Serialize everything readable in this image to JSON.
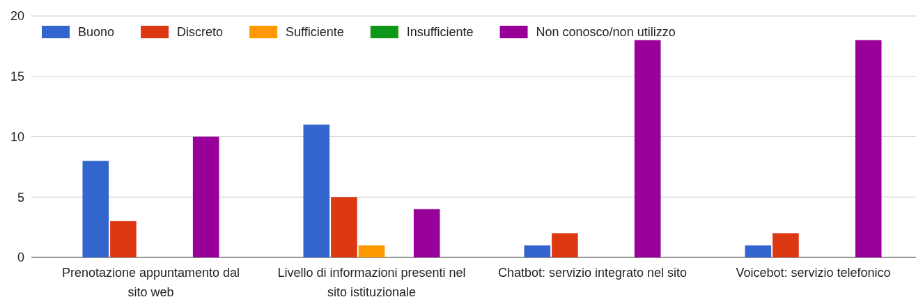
{
  "chart_data": {
    "type": "bar",
    "categories": [
      "Prenotazione appuntamento dal sito web",
      "Livello di informazioni presenti nel sito istituzionale",
      "Chatbot: servizio integrato nel sito",
      "Voicebot: servizio telefonico"
    ],
    "series": [
      {
        "name": "Buono",
        "color": "#3366cc",
        "values": [
          8,
          11,
          1,
          1
        ]
      },
      {
        "name": "Discreto",
        "color": "#dc3912",
        "values": [
          3,
          5,
          2,
          2
        ]
      },
      {
        "name": "Sufficiente",
        "color": "#ff9900",
        "values": [
          0,
          1,
          0,
          0
        ]
      },
      {
        "name": "Insufficiente",
        "color": "#109618",
        "values": [
          0,
          0,
          0,
          0
        ]
      },
      {
        "name": "Non conosco/non utilizzo",
        "color": "#990099",
        "values": [
          10,
          4,
          18,
          18
        ]
      }
    ],
    "ylim": [
      0,
      20
    ],
    "yticks": [
      0,
      5,
      10,
      15,
      20
    ],
    "grid": "y",
    "legend": "top left"
  }
}
